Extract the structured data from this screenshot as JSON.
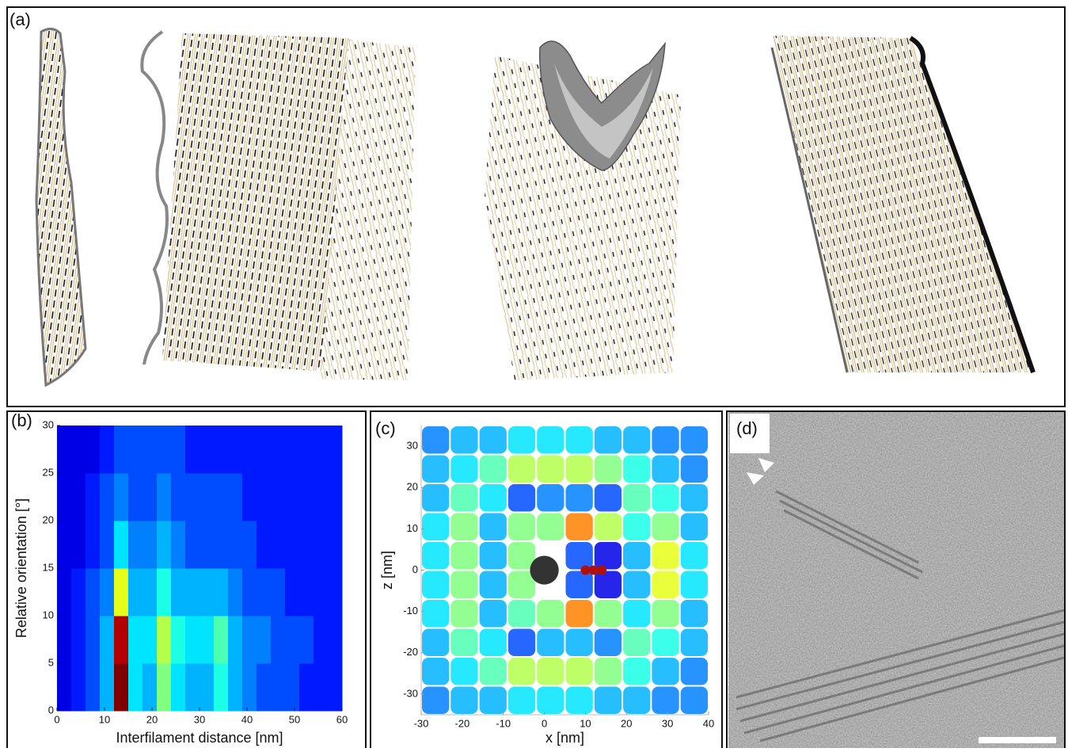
{
  "panels": {
    "a": {
      "label": "(a)"
    },
    "d": {
      "label": "(d)"
    }
  },
  "chart_data": [
    {
      "type": "heatmap",
      "panel_label": "(b)",
      "x_label": "Interfilament distance [nm]",
      "y_label": "Relative orientation [°]",
      "xlim": [
        0,
        60
      ],
      "ylim": [
        0,
        30
      ],
      "xticks": [
        0,
        10,
        20,
        30,
        40,
        50,
        60
      ],
      "yticks": [
        0,
        5,
        10,
        15,
        20,
        25,
        30
      ],
      "x_bins": [
        0,
        3,
        6,
        9,
        12,
        15,
        18,
        21,
        24,
        27,
        30,
        33,
        36,
        39,
        42,
        45,
        48,
        51,
        54,
        57,
        60
      ],
      "y_bins": [
        0,
        5,
        10,
        15,
        20,
        25,
        30
      ],
      "z": [
        [
          0.1,
          0.15,
          0.2,
          0.3,
          1.0,
          0.35,
          0.3,
          0.5,
          0.35,
          0.3,
          0.3,
          0.4,
          0.3,
          0.25,
          0.2,
          0.2,
          0.2,
          0.15,
          0.15,
          0.15
        ],
        [
          0.1,
          0.15,
          0.2,
          0.3,
          0.95,
          0.35,
          0.35,
          0.55,
          0.4,
          0.35,
          0.35,
          0.45,
          0.3,
          0.25,
          0.25,
          0.2,
          0.2,
          0.2,
          0.15,
          0.15
        ],
        [
          0.1,
          0.15,
          0.2,
          0.25,
          0.6,
          0.3,
          0.3,
          0.4,
          0.3,
          0.3,
          0.3,
          0.3,
          0.25,
          0.2,
          0.2,
          0.2,
          0.15,
          0.15,
          0.15,
          0.15
        ],
        [
          0.1,
          0.1,
          0.15,
          0.2,
          0.35,
          0.25,
          0.25,
          0.3,
          0.25,
          0.2,
          0.2,
          0.2,
          0.2,
          0.2,
          0.15,
          0.15,
          0.15,
          0.15,
          0.15,
          0.15
        ],
        [
          0.1,
          0.1,
          0.15,
          0.2,
          0.25,
          0.2,
          0.2,
          0.25,
          0.2,
          0.2,
          0.2,
          0.2,
          0.2,
          0.15,
          0.15,
          0.15,
          0.15,
          0.15,
          0.15,
          0.15
        ],
        [
          0.1,
          0.1,
          0.1,
          0.15,
          0.2,
          0.2,
          0.2,
          0.2,
          0.2,
          0.15,
          0.15,
          0.15,
          0.15,
          0.15,
          0.15,
          0.15,
          0.15,
          0.15,
          0.15,
          0.15
        ]
      ]
    },
    {
      "type": "scatter",
      "panel_label": "(c)",
      "x_label": "x [nm]",
      "y_label": "z [nm]",
      "xlim": [
        -30,
        40
      ],
      "ylim": [
        -35,
        35
      ],
      "xticks": [
        -30,
        -20,
        -10,
        0,
        10,
        20,
        30,
        40
      ],
      "yticks": [
        -30,
        -20,
        -10,
        0,
        10,
        20,
        30
      ],
      "x_bins": [
        -30,
        -23,
        -16,
        -9,
        -2,
        5,
        12,
        19,
        26,
        33,
        40
      ],
      "y_bins": [
        -35,
        -28,
        -21,
        -14,
        -7,
        0,
        7,
        14,
        21,
        28,
        35
      ],
      "z": [
        [
          0.25,
          0.3,
          0.3,
          0.35,
          0.35,
          0.35,
          0.3,
          0.3,
          0.25,
          0.25
        ],
        [
          0.3,
          0.35,
          0.45,
          0.55,
          0.55,
          0.55,
          0.5,
          0.4,
          0.3,
          0.25
        ],
        [
          0.3,
          0.45,
          0.35,
          0.2,
          0.3,
          0.3,
          0.25,
          0.45,
          0.4,
          0.3
        ],
        [
          0.35,
          0.5,
          0.3,
          0.45,
          0.5,
          0.75,
          0.5,
          0.35,
          0.5,
          0.3
        ],
        [
          0.35,
          0.5,
          0.3,
          0.5,
          0,
          0.2,
          0.1,
          0.3,
          0.6,
          0.35
        ],
        [
          0.35,
          0.5,
          0.3,
          0.5,
          0,
          0.2,
          0.1,
          0.3,
          0.6,
          0.35
        ],
        [
          0.35,
          0.5,
          0.3,
          0.5,
          0.5,
          0.75,
          0.55,
          0.4,
          0.5,
          0.3
        ],
        [
          0.3,
          0.45,
          0.35,
          0.2,
          0.25,
          0.25,
          0.2,
          0.45,
          0.4,
          0.3
        ],
        [
          0.3,
          0.35,
          0.45,
          0.55,
          0.55,
          0.55,
          0.5,
          0.4,
          0.3,
          0.25
        ],
        [
          0.25,
          0.3,
          0.3,
          0.35,
          0.35,
          0.35,
          0.3,
          0.3,
          0.25,
          0.25
        ]
      ],
      "reference_filament": {
        "x": 0,
        "z": 0,
        "diameter": 7,
        "color": "#333333"
      },
      "peak": {
        "x": [
          10,
          12,
          14
        ],
        "z": [
          0,
          0,
          0
        ],
        "color": "#b0100a"
      }
    }
  ]
}
